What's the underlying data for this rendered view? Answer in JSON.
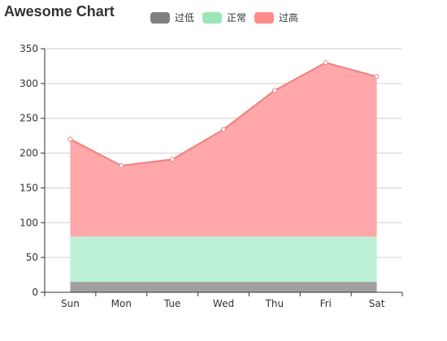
{
  "chart_data": {
    "type": "area",
    "title": "Awesome Chart",
    "categories": [
      "Sun",
      "Mon",
      "Tue",
      "Wed",
      "Thu",
      "Fri",
      "Sat"
    ],
    "ylim": [
      0,
      350
    ],
    "yticks": [
      0,
      50,
      100,
      150,
      200,
      250,
      300,
      350
    ],
    "grid": true,
    "legend_position": "top-center",
    "series": [
      {
        "name": "过低",
        "color": "#808080",
        "values": [
          15,
          15,
          15,
          15,
          15,
          15,
          15
        ]
      },
      {
        "name": "正常",
        "color": "#9ce5b8",
        "values": [
          80,
          80,
          80,
          80,
          80,
          80,
          80
        ]
      },
      {
        "name": "过高",
        "color": "#ff8a8a",
        "values": [
          220,
          182,
          191,
          234,
          290,
          330,
          310
        ]
      }
    ]
  }
}
